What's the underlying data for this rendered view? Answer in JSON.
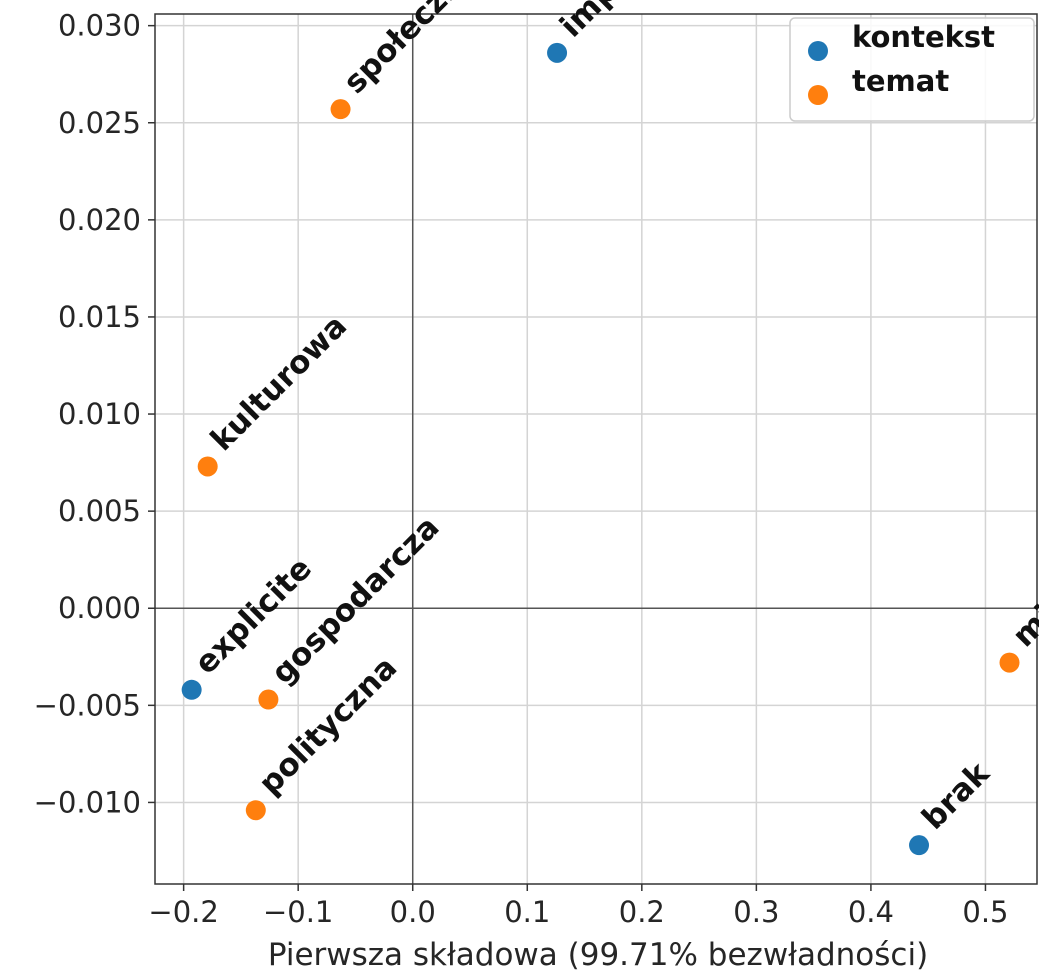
{
  "chart_data": {
    "type": "scatter",
    "xlabel": "Pierwsza składowa (99.71% bezwładności)",
    "ylabel": "",
    "xlim": [
      -0.225,
      0.545
    ],
    "ylim": [
      -0.0142,
      0.0306
    ],
    "x_ticks": [
      -0.2,
      -0.1,
      0.0,
      0.1,
      0.2,
      0.3,
      0.4,
      0.5
    ],
    "x_tick_labels": [
      "−0.2",
      "−0.1",
      "0.0",
      "0.1",
      "0.2",
      "0.3",
      "0.4",
      "0.5"
    ],
    "y_ticks": [
      -0.01,
      -0.005,
      0.0,
      0.005,
      0.01,
      0.015,
      0.02,
      0.025,
      0.03
    ],
    "y_tick_labels": [
      "−0.010",
      "−0.005",
      "0.000",
      "0.005",
      "0.010",
      "0.015",
      "0.020",
      "0.025",
      "0.030"
    ],
    "grid": true,
    "legend_position": "top-right",
    "series": [
      {
        "name": "kontekst",
        "color": "#1f77b4",
        "points": [
          {
            "label": "implicite",
            "x": 0.126,
            "y": 0.0286
          },
          {
            "label": "explicite",
            "x": -0.193,
            "y": -0.0042
          },
          {
            "label": "brak",
            "x": 0.442,
            "y": -0.0122
          }
        ]
      },
      {
        "name": "temat",
        "color": "#ff7f0e",
        "points": [
          {
            "label": "społeczna",
            "x": -0.063,
            "y": 0.0257
          },
          {
            "label": "kulturowa",
            "x": -0.179,
            "y": 0.0073
          },
          {
            "label": "gospodarcza",
            "x": -0.126,
            "y": -0.0047
          },
          {
            "label": "polityczna",
            "x": -0.137,
            "y": -0.0104
          },
          {
            "label": "militarna",
            "x": 0.521,
            "y": -0.0028
          }
        ]
      }
    ]
  }
}
